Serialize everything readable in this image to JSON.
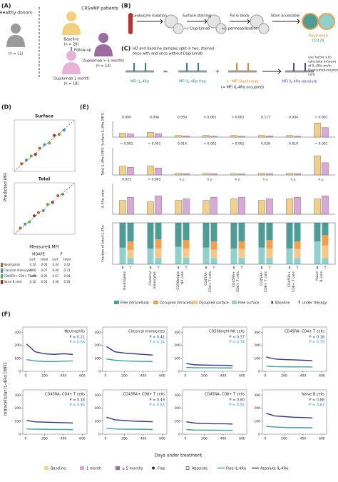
{
  "panel_a": {
    "label": "(A)",
    "healthy": "Healthy donors",
    "healthy_n": "(n = 11)",
    "patients": "CRSwNP patients",
    "baseline": "Baseline",
    "baseline_n": "(n = 20)",
    "follow_up": "Follow-up",
    "one_month": "Dupilumab 1 month",
    "one_month_n": "(n = 18)",
    "five_months": "Dupilumab > 5 months",
    "five_months_n": "(n = 14)"
  },
  "panel_b": {
    "label": "(B)",
    "steps": [
      "Leukocyte isolation",
      "Surface staining",
      "+/- Dupilumab",
      "Fix & block",
      "+/- permeabilization",
      "Stain accessible"
    ],
    "markers": [
      "Dupilumab",
      "CD124"
    ]
  },
  "panel_c": {
    "label": "(C)",
    "note": [
      "HD and baseline samples split in two, stained",
      "once with and once without Dupilumab"
    ],
    "mfi": "MFI IL-4Rα",
    "equals": "=",
    "free": "MFI IL-4Rα free",
    "plus": "+",
    "dupi": "x · MFI Dupilumab",
    "occupied": "(= MFI IL-4Rα occupied)",
    "absolute": "MFI IL-4Rα absolute",
    "factor": [
      "use factor x to",
      "calculate amount",
      "of IL-4Rα on/in",
      "Dupilumab-treated",
      "cells"
    ]
  },
  "panel_d": {
    "label": "(D)",
    "y_label": "Predicted MFI",
    "x_label": "Measured MFI",
    "plots": [
      {
        "title": "Surface",
        "x": [
          0.12,
          0.2,
          0.28,
          0.35,
          0.42,
          0.5,
          0.58,
          0.66,
          0.74,
          0.82
        ],
        "y": [
          0.15,
          0.22,
          0.3,
          0.33,
          0.45,
          0.52,
          0.55,
          0.7,
          0.72,
          0.8
        ]
      },
      {
        "title": "Total",
        "x": [
          0.1,
          0.18,
          0.25,
          0.33,
          0.4,
          0.48,
          0.55,
          0.63,
          0.72,
          0.8
        ],
        "y": [
          0.12,
          0.2,
          0.24,
          0.36,
          0.42,
          0.46,
          0.58,
          0.62,
          0.75,
          0.78
        ]
      }
    ],
    "colors": [
      "#b5651d",
      "#4a8fc1",
      "#6aaa4b",
      "#9b2f2f"
    ],
    "table": {
      "header": [
        "MDAPE",
        "P"
      ],
      "sub": [
        "surf.",
        "total",
        "surf.",
        "total"
      ],
      "rows": [
        [
          "Neutrophils",
          "0.10",
          "0.06",
          "0.34",
          "0.42"
        ],
        [
          "Classical monocytes",
          "0.06",
          "0.07",
          "0.40",
          "0.73"
        ],
        [
          "CD45RA+ CD4+ T cells",
          "0.09",
          "0.09",
          "0.57",
          "0.94"
        ],
        [
          "Naive B cells",
          "0.10",
          "0.05",
          "0.30",
          "0.55"
        ]
      ]
    }
  },
  "panel_e": {
    "label": "(E)",
    "categories": [
      [
        "Neutrophils"
      ],
      [
        "Classical",
        "monocytes"
      ],
      [
        "CD56bright",
        "NK cells"
      ],
      [
        "CD45RA-",
        "CD4+ T cells"
      ],
      [
        "CD45RA+",
        "CD4+ T cells"
      ],
      [
        "CD45RA-",
        "CD8+ T cells"
      ],
      [
        "CD45RA+",
        "CD8+ T cells"
      ],
      [
        "Naive",
        "B cells"
      ]
    ],
    "baseline_color": "#f3d08a",
    "therapy_color": "#d9a9da",
    "rows": [
      {
        "y_label": "Surface IL-4Rα [MFI]",
        "ylim": [
          0,
          1000
        ],
        "p": [
          "0.004",
          "0.004",
          "0.050",
          "< 0.001",
          "< 0.001",
          "0.117",
          "0.004",
          "< 0.001"
        ],
        "baseline": [
          250,
          300,
          100,
          100,
          100,
          100,
          100,
          900
        ],
        "therapy": [
          200,
          220,
          80,
          60,
          60,
          80,
          60,
          600
        ]
      },
      {
        "y_label": "Total IL-4Rα [MFI]",
        "ylim": [
          0,
          1000
        ],
        "p": [
          "< 0.001",
          "< 0.001",
          "0.014",
          "< 0.001",
          "< 0.001",
          "0.028",
          "0.010",
          "< 0.001"
        ],
        "baseline": [
          320,
          330,
          60,
          60,
          50,
          60,
          60,
          700
        ],
        "therapy": [
          280,
          260,
          50,
          50,
          40,
          50,
          50,
          450
        ]
      },
      {
        "y_label": "IL-4Rα ratio",
        "ylim": [
          0,
          1
        ],
        "p": [
          "0.023",
          "< 0.001",
          "n.s.",
          "n.s.",
          "n.s.",
          "n.s.",
          "n.s.",
          "n.s."
        ],
        "baseline": [
          0.45,
          0.4,
          0.45,
          0.45,
          0.5,
          0.45,
          0.5,
          0.5
        ],
        "therapy": [
          0.55,
          0.6,
          0.5,
          0.55,
          0.55,
          0.5,
          0.55,
          0.6
        ]
      }
    ],
    "fraction": {
      "y_label": "Fraction of total IL-4Rα",
      "series": [
        {
          "name": "Free intracellular",
          "color": "#4f9c96",
          "baseline": [
            0.6,
            0.62,
            0.58,
            0.6,
            0.62,
            0.6,
            0.62,
            0.45
          ],
          "therapy": [
            0.45,
            0.4,
            0.42,
            0.45,
            0.45,
            0.42,
            0.45,
            0.3
          ]
        },
        {
          "name": "Occupied intracellular",
          "color": "#f0a050",
          "baseline": [
            0,
            0,
            0,
            0,
            0,
            0,
            0,
            0
          ],
          "therapy": [
            0.2,
            0.22,
            0.2,
            0.2,
            0.18,
            0.2,
            0.18,
            0.25
          ]
        },
        {
          "name": "Occupied surface",
          "color": "#f6c98a",
          "baseline": [
            0,
            0,
            0,
            0,
            0,
            0,
            0,
            0
          ],
          "therapy": [
            0.2,
            0.23,
            0.22,
            0.2,
            0.22,
            0.23,
            0.22,
            0.3
          ]
        },
        {
          "name": "Free surface",
          "color": "#8fd0ca",
          "baseline": [
            0.4,
            0.38,
            0.42,
            0.4,
            0.38,
            0.4,
            0.38,
            0.55
          ],
          "therapy": [
            0.15,
            0.15,
            0.16,
            0.15,
            0.15,
            0.15,
            0.15,
            0.15
          ]
        }
      ]
    },
    "bar_keys": [
      "B",
      "T"
    ],
    "bar_key_text": [
      "Baseline",
      "under therapy"
    ]
  },
  "panel_f": {
    "label": "(F)",
    "y_label": "Intracellular IL-4Rα [MFI]",
    "x_label": "Days under treatment",
    "xlim": [
      -30,
      650
    ],
    "ylim": [
      0,
      340
    ],
    "xticks": [
      0,
      200,
      400,
      600
    ],
    "yticks": [
      0,
      100,
      200,
      300
    ],
    "x": [
      10,
      100,
      200,
      300,
      400,
      500
    ],
    "free_color": "#3aa39a",
    "absolute_color": "#2e3a8c",
    "panels": [
      {
        "title": "Neutrophils",
        "p_absolute": "P = 0.21",
        "p_free": "P = 0.66",
        "absolute": [
          210,
          150,
          135,
          130,
          135,
          130
        ],
        "free": [
          90,
          80,
          75,
          75,
          78,
          80
        ]
      },
      {
        "title": "Classical monocytes",
        "p_absolute": "P = 0.42",
        "p_free": "P = 0.14",
        "absolute": [
          190,
          150,
          140,
          135,
          130,
          125
        ],
        "free": [
          95,
          85,
          80,
          78,
          76,
          75
        ]
      },
      {
        "title": "CD56bright NK cells",
        "p_absolute": "P = 0.37",
        "p_free": "P = 0.74",
        "absolute": [
          60,
          50,
          48,
          47,
          46,
          45
        ],
        "free": [
          30,
          28,
          27,
          27,
          26,
          26
        ]
      },
      {
        "title": "CD45RA- CD4+ T cells",
        "p_absolute": "P = 0.18",
        "p_free": "P = 0.79",
        "absolute": [
          110,
          95,
          90,
          88,
          85,
          82
        ],
        "free": [
          40,
          36,
          35,
          34,
          34,
          33
        ]
      },
      {
        "title": "CD45RA- CD4+ T cells",
        "p_absolute": "P = 0.18",
        "p_free": "P = 0.94",
        "absolute": [
          105,
          95,
          92,
          90,
          88,
          86
        ],
        "free": [
          40,
          38,
          37,
          36,
          36,
          35
        ]
      },
      {
        "title": "CD45RA+ CD8+ T cells",
        "p_absolute": "P = 0.49",
        "p_free": "P = 0.53",
        "absolute": [
          130,
          110,
          105,
          100,
          98,
          95
        ],
        "free": [
          45,
          40,
          38,
          38,
          37,
          36
        ]
      },
      {
        "title": "CD45RA- CD8+ T cells",
        "p_absolute": "P = 0.80",
        "p_free": "P = 0.55",
        "absolute": [
          95,
          85,
          82,
          80,
          80,
          78
        ],
        "free": [
          35,
          32,
          31,
          31,
          30,
          30
        ]
      },
      {
        "title": "Naive B cells",
        "p_absolute": "P = 0.88",
        "p_free": "P = 0.62",
        "absolute": [
          160,
          140,
          135,
          130,
          128,
          125
        ],
        "free": [
          60,
          55,
          52,
          50,
          50,
          48
        ]
      }
    ],
    "legend": [
      "Baseline",
      "1 month",
      "≥ 5 months",
      "Free",
      "Absolute",
      "Free IL-4Rα",
      "Absolute IL-4Rα"
    ]
  }
}
